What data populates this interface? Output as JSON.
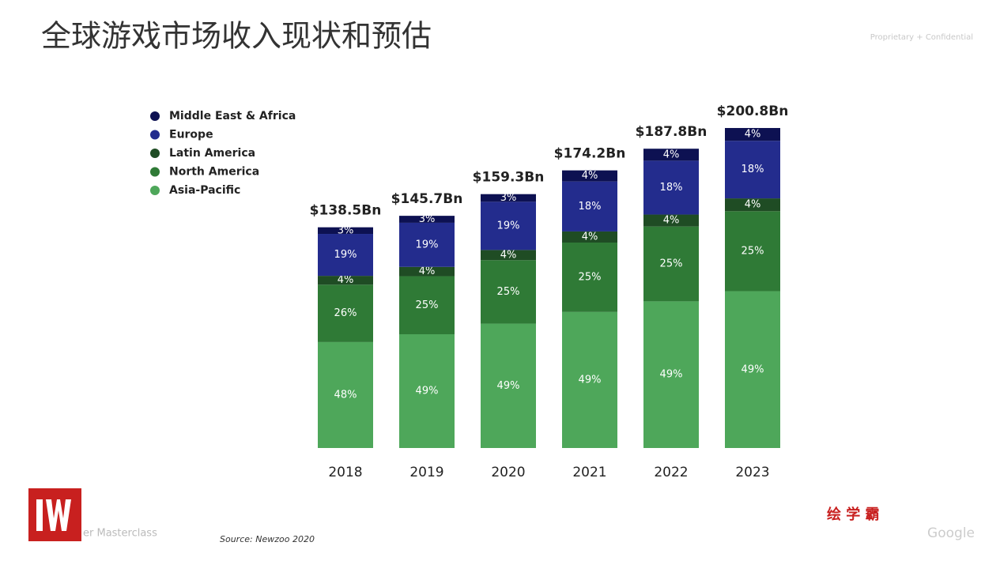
{
  "slide": {
    "title": "全球游戏市场收入现状和预估",
    "confidential": "Proprietary + Confidential",
    "source": "Source: Newzoo 2020",
    "footer": "er Masterclass",
    "watermark": "绘 学 霸",
    "brand": "Google"
  },
  "chart_data": {
    "type": "stacked_bar",
    "categories": [
      "2018",
      "2019",
      "2020",
      "2021",
      "2022",
      "2023"
    ],
    "totals": {
      "values": [
        138.5,
        145.7,
        159.3,
        174.2,
        187.8,
        200.8
      ],
      "value_labels": [
        "$138.5Bn",
        "$145.7Bn",
        "$159.3Bn",
        "$174.2Bn",
        "$187.8Bn",
        "$200.8Bn"
      ]
    },
    "series": [
      {
        "name": "Asia-Pacific",
        "color": "#4ea75a",
        "values": [
          48,
          49,
          49,
          49,
          49,
          49
        ],
        "value_labels": [
          "48%",
          "49%",
          "49%",
          "49%",
          "49%",
          "49%"
        ]
      },
      {
        "name": "North America",
        "color": "#2f7a36",
        "values": [
          26,
          25,
          25,
          25,
          25,
          25
        ],
        "value_labels": [
          "26%",
          "25%",
          "25%",
          "25%",
          "25%",
          "25%"
        ]
      },
      {
        "name": "Latin America",
        "color": "#1f4c24",
        "values": [
          4,
          4,
          4,
          4,
          4,
          4
        ],
        "value_labels": [
          "4%",
          "4%",
          "4%",
          "4%",
          "4%",
          "4%"
        ]
      },
      {
        "name": "Europe",
        "color": "#232c8d",
        "values": [
          19,
          19,
          19,
          18,
          18,
          18
        ],
        "value_labels": [
          "19%",
          "19%",
          "19%",
          "18%",
          "18%",
          "18%"
        ]
      },
      {
        "name": "Middle East & Africa",
        "color": "#0d1152",
        "values": [
          3,
          3,
          3,
          4,
          4,
          4
        ],
        "value_labels": [
          "3%",
          "3%",
          "3%",
          "4%",
          "4%",
          "4%"
        ]
      }
    ],
    "legend": "top-left"
  }
}
